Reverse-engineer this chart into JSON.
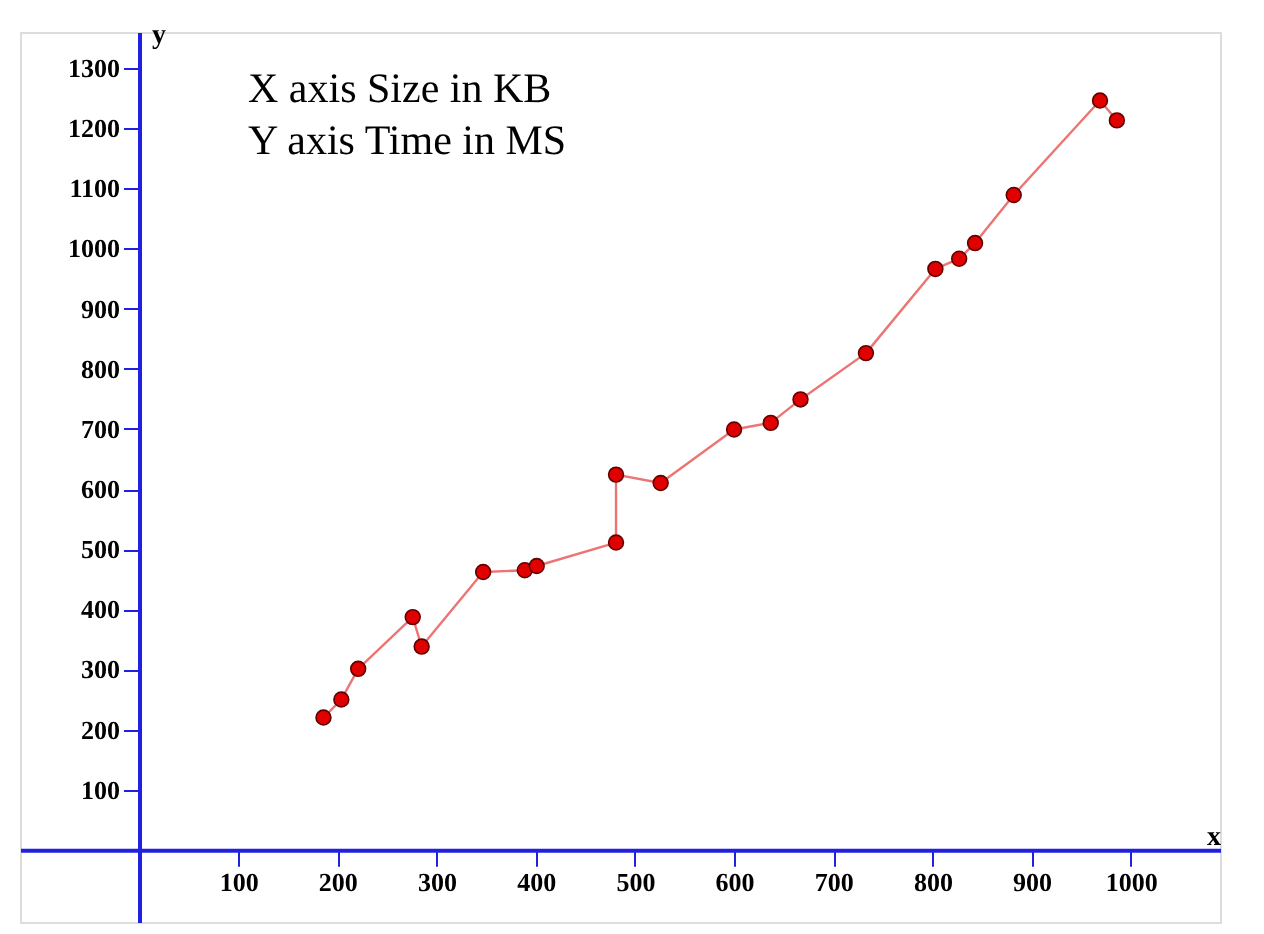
{
  "chart_data": {
    "type": "line",
    "xlabel": "x",
    "ylabel": "y",
    "annotations": [
      "X axis Size in KB",
      "Y axis Time in MS"
    ],
    "x": [
      186,
      204,
      221,
      276,
      285,
      347,
      389,
      401,
      481,
      481,
      526,
      600,
      637,
      667,
      733,
      803,
      827,
      843,
      882,
      969,
      986
    ],
    "series": [
      {
        "color": "#e00000",
        "values": [
          220,
          250,
          301,
          387,
          338,
          462,
          465,
          472,
          511,
          624,
          610,
          699,
          710,
          749,
          826,
          966,
          983,
          1009,
          1089,
          1246,
          1213
        ]
      }
    ],
    "xlim": [
      -120,
      1090
    ],
    "ylim": [
      -120,
      1360
    ],
    "xticks": [
      100,
      200,
      300,
      400,
      500,
      600,
      700,
      800,
      900,
      1000
    ],
    "yticks": [
      100,
      200,
      300,
      400,
      500,
      600,
      700,
      800,
      900,
      1000,
      1100,
      1200,
      1300
    ],
    "grid": false,
    "marker": "circle",
    "line_style": "solid"
  }
}
